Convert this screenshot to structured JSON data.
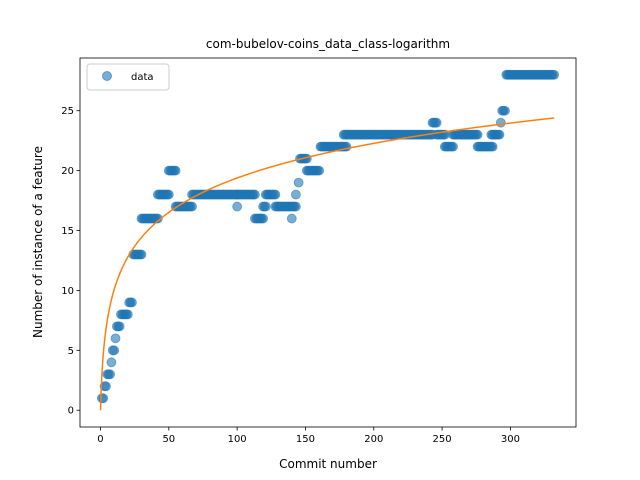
{
  "chart_data": {
    "type": "scatter",
    "title": "com-bubelov-coins_data_class-logarithm",
    "xlabel": "Commit number",
    "ylabel": "Number of instance of a feature",
    "xlim": [
      -15,
      348
    ],
    "ylim": [
      -1.4,
      29.4
    ],
    "xticks": [
      0,
      50,
      100,
      150,
      200,
      250,
      300
    ],
    "yticks": [
      0,
      5,
      10,
      15,
      20,
      25
    ],
    "grid": false,
    "legend": {
      "placement": "top-left",
      "entries": [
        "data"
      ]
    },
    "colors": {
      "points": "#1f77b4",
      "fit": "#ff7f0e"
    },
    "series": [
      {
        "name": "data",
        "kind": "points",
        "segments": [
          [
            1,
            2,
            1
          ],
          [
            3,
            4,
            2
          ],
          [
            5,
            7,
            3
          ],
          [
            8,
            8,
            4
          ],
          [
            9,
            10,
            5
          ],
          [
            11,
            11,
            6
          ],
          [
            12,
            14,
            7
          ],
          [
            15,
            20,
            8
          ],
          [
            21,
            23,
            9
          ],
          [
            24,
            30,
            13
          ],
          [
            30,
            42,
            16
          ],
          [
            42,
            50,
            18
          ],
          [
            50,
            55,
            20
          ],
          [
            55,
            67,
            17
          ],
          [
            67,
            100,
            18
          ],
          [
            100,
            100,
            17
          ],
          [
            100,
            113,
            18
          ],
          [
            113,
            119,
            16
          ],
          [
            119,
            121,
            17
          ],
          [
            121,
            128,
            18
          ],
          [
            128,
            139,
            17
          ],
          [
            140,
            140,
            16
          ],
          [
            140,
            143,
            17
          ],
          [
            143,
            143,
            18
          ],
          [
            145,
            145,
            19
          ],
          [
            146,
            151,
            21
          ],
          [
            151,
            160,
            20
          ],
          [
            161,
            180,
            22
          ],
          [
            178,
            243,
            23
          ],
          [
            243,
            246,
            24
          ],
          [
            246,
            252,
            23
          ],
          [
            252,
            258,
            22
          ],
          [
            258,
            276,
            23
          ],
          [
            276,
            287,
            22
          ],
          [
            286,
            292,
            23
          ],
          [
            293,
            293,
            24
          ],
          [
            294,
            296,
            25
          ],
          [
            297,
            332,
            28
          ]
        ]
      },
      {
        "name": "",
        "kind": "line",
        "model": "a*ln(x+1)",
        "a": 4.2,
        "x_range": [
          0,
          332
        ]
      }
    ]
  }
}
